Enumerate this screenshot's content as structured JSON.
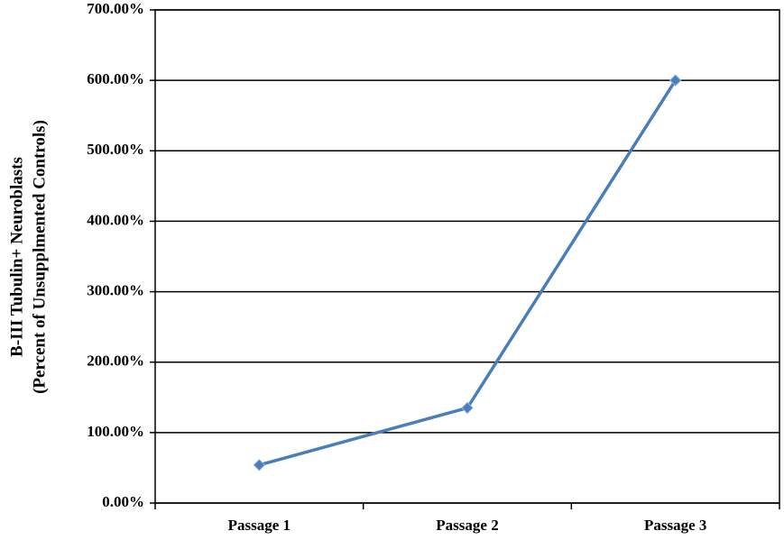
{
  "chart_data": {
    "type": "line",
    "ylabel": [
      "B-III Tubulin+ Neuroblasts",
      "(Percent of Unsupplmented  Controls)"
    ],
    "categories": [
      "Passage 1",
      "Passage 2",
      "Passage 3"
    ],
    "values": [
      54,
      135,
      600
    ],
    "color": "#4a7ebb",
    "ylim": [
      0,
      700
    ],
    "yticks": [
      {
        "value": 0,
        "label": "0.00%"
      },
      {
        "value": 100,
        "label": "100.00%"
      },
      {
        "value": 200,
        "label": "200.00%"
      },
      {
        "value": 300,
        "label": "300.00%"
      },
      {
        "value": 400,
        "label": "400.00%"
      },
      {
        "value": 500,
        "label": "500.00%"
      },
      {
        "value": 600,
        "label": "600.00%"
      },
      {
        "value": 700,
        "label": "700.00%"
      }
    ],
    "grid": true
  }
}
